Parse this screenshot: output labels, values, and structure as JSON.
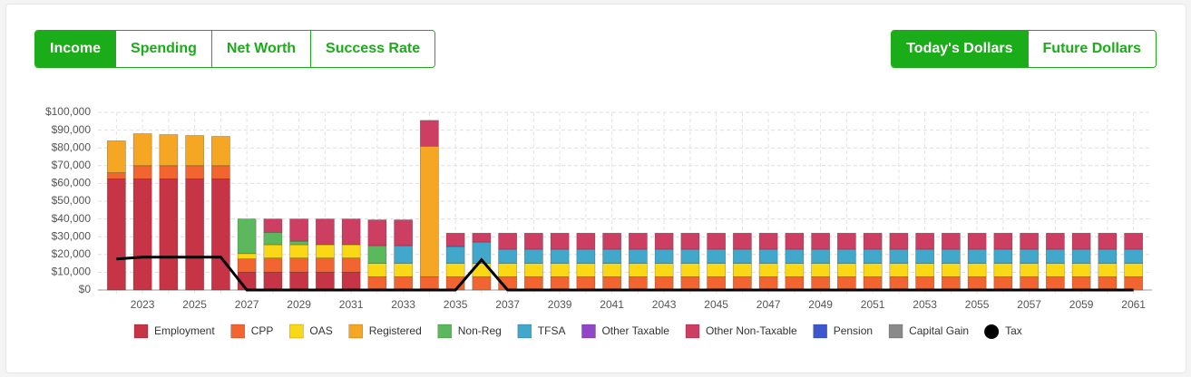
{
  "tabs": [
    "Income",
    "Spending",
    "Net Worth",
    "Success Rate"
  ],
  "dollar_toggle": [
    "Today's Dollars",
    "Future Dollars"
  ],
  "chart_data": {
    "type": "bar",
    "stacked": true,
    "grid": true,
    "categories": [
      null,
      "2023",
      null,
      "2025",
      null,
      "2027",
      null,
      "2029",
      null,
      "2031",
      null,
      "2033",
      null,
      "2035",
      null,
      "2037",
      null,
      "2039",
      null,
      "2041",
      null,
      "2043",
      null,
      "2045",
      null,
      "2047",
      null,
      "2049",
      null,
      "2051",
      null,
      "2053",
      null,
      "2055",
      null,
      "2057",
      null,
      "2059",
      null,
      "2061"
    ],
    "ylim": [
      0,
      100000
    ],
    "yticks": [
      {
        "value": 0,
        "label": "$0"
      },
      {
        "value": 10000,
        "label": "$10,000"
      },
      {
        "value": 20000,
        "label": "$20,000"
      },
      {
        "value": 30000,
        "label": "$30,000"
      },
      {
        "value": 40000,
        "label": "$40,000"
      },
      {
        "value": 50000,
        "label": "$50,000"
      },
      {
        "value": 60000,
        "label": "$60,000"
      },
      {
        "value": 70000,
        "label": "$70,000"
      },
      {
        "value": 80000,
        "label": "$80,000"
      },
      {
        "value": 90000,
        "label": "$90,000"
      },
      {
        "value": 100000,
        "label": "$100,000"
      }
    ],
    "series": [
      {
        "name": "Employment",
        "color": "#c63446",
        "values": [
          62500,
          62500,
          62500,
          62500,
          62500,
          10000,
          10000,
          10000,
          10000,
          10000,
          0,
          0,
          0,
          0,
          0,
          0,
          0,
          0,
          0,
          0,
          0,
          0,
          0,
          0,
          0,
          0,
          0,
          0,
          0,
          0,
          0,
          0,
          0,
          0,
          0,
          0,
          0,
          0,
          0,
          0
        ]
      },
      {
        "name": "CPP",
        "color": "#f26430",
        "values": [
          3500,
          7500,
          7500,
          7500,
          7500,
          7500,
          8000,
          8000,
          8000,
          8000,
          7500,
          7500,
          7500,
          7500,
          7500,
          7500,
          7500,
          7500,
          7500,
          7500,
          7500,
          7500,
          7500,
          7500,
          7500,
          7500,
          7500,
          7500,
          7500,
          7500,
          7500,
          7500,
          7500,
          7500,
          7500,
          7500,
          7500,
          7500,
          7500,
          7500
        ]
      },
      {
        "name": "OAS",
        "color": "#fbd815",
        "values": [
          0,
          0,
          0,
          0,
          0,
          3000,
          7500,
          7500,
          7500,
          7500,
          7500,
          7500,
          0,
          7500,
          7500,
          7500,
          7500,
          7500,
          7500,
          7500,
          7500,
          7500,
          7500,
          7500,
          7500,
          7500,
          7500,
          7500,
          7500,
          7500,
          7500,
          7500,
          7500,
          7500,
          7500,
          7500,
          7500,
          7500,
          7500,
          7500
        ]
      },
      {
        "name": "Registered",
        "color": "#f5a623",
        "values": [
          18000,
          18000,
          17500,
          17000,
          16500,
          0,
          0,
          0,
          0,
          0,
          0,
          0,
          73500,
          0,
          0,
          0,
          0,
          0,
          0,
          0,
          0,
          0,
          0,
          0,
          0,
          0,
          0,
          0,
          0,
          0,
          0,
          0,
          0,
          0,
          0,
          0,
          0,
          0,
          0,
          0
        ]
      },
      {
        "name": "Non-Reg",
        "color": "#5cb85c",
        "values": [
          0,
          0,
          0,
          0,
          0,
          19500,
          7000,
          2000,
          0,
          0,
          10000,
          0,
          0,
          0,
          0,
          0,
          0,
          0,
          0,
          0,
          0,
          0,
          0,
          0,
          0,
          0,
          0,
          0,
          0,
          0,
          0,
          0,
          0,
          0,
          0,
          0,
          0,
          0,
          0,
          0
        ]
      },
      {
        "name": "TFSA",
        "color": "#41a7cb",
        "values": [
          0,
          0,
          0,
          0,
          0,
          0,
          0,
          0,
          0,
          0,
          0,
          10000,
          0,
          9500,
          12000,
          8000,
          8000,
          8000,
          8000,
          8000,
          8000,
          8000,
          8000,
          8000,
          8000,
          8000,
          8000,
          8000,
          8000,
          8000,
          8000,
          8000,
          8000,
          8000,
          8000,
          8000,
          8000,
          8000,
          8000,
          8000
        ]
      },
      {
        "name": "Other Taxable",
        "color": "#9146c8",
        "values": [
          0,
          0,
          0,
          0,
          0,
          0,
          0,
          0,
          0,
          0,
          0,
          0,
          0,
          0,
          0,
          0,
          0,
          0,
          0,
          0,
          0,
          0,
          0,
          0,
          0,
          0,
          0,
          0,
          0,
          0,
          0,
          0,
          0,
          0,
          0,
          0,
          0,
          0,
          0,
          0
        ]
      },
      {
        "name": "Other Non-Taxable",
        "color": "#cd3f62",
        "values": [
          0,
          0,
          0,
          0,
          0,
          0,
          7500,
          12500,
          14500,
          14500,
          14500,
          14500,
          14500,
          7500,
          5000,
          9000,
          9000,
          9000,
          9000,
          9000,
          9000,
          9000,
          9000,
          9000,
          9000,
          9000,
          9000,
          9000,
          9000,
          9000,
          9000,
          9000,
          9000,
          9000,
          9000,
          9000,
          9000,
          9000,
          9000,
          9000
        ]
      },
      {
        "name": "Pension",
        "color": "#3e57cf",
        "values": [
          0,
          0,
          0,
          0,
          0,
          0,
          0,
          0,
          0,
          0,
          0,
          0,
          0,
          0,
          0,
          0,
          0,
          0,
          0,
          0,
          0,
          0,
          0,
          0,
          0,
          0,
          0,
          0,
          0,
          0,
          0,
          0,
          0,
          0,
          0,
          0,
          0,
          0,
          0,
          0
        ]
      },
      {
        "name": "Capital Gain",
        "color": "#8a8a8a",
        "values": [
          0,
          0,
          0,
          0,
          0,
          0,
          0,
          0,
          0,
          0,
          0,
          0,
          0,
          0,
          0,
          0,
          0,
          0,
          0,
          0,
          0,
          0,
          0,
          0,
          0,
          0,
          0,
          0,
          0,
          0,
          0,
          0,
          0,
          0,
          0,
          0,
          0,
          0,
          0,
          0
        ]
      },
      {
        "name": "Tax",
        "type": "line",
        "color": "#000000",
        "values": [
          17500,
          18500,
          18500,
          18500,
          18500,
          0,
          0,
          0,
          0,
          0,
          0,
          0,
          0,
          0,
          17000,
          0,
          0,
          0,
          0,
          0,
          0,
          0,
          0,
          0,
          0,
          0,
          0,
          0,
          0,
          0,
          0,
          0,
          0,
          0,
          0,
          0,
          0,
          0,
          0,
          0
        ]
      }
    ]
  }
}
